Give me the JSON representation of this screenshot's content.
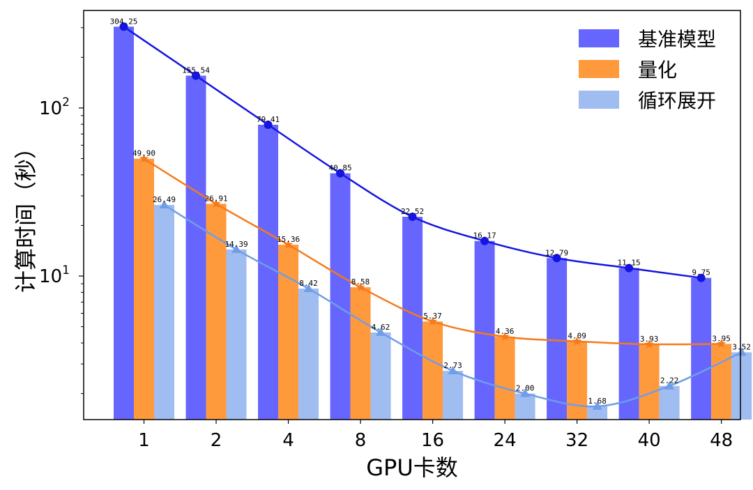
{
  "chart_data": {
    "type": "bar",
    "categories": [
      "1",
      "2",
      "4",
      "8",
      "16",
      "24",
      "32",
      "40",
      "48"
    ],
    "xlabel": "GPU卡数",
    "ylabel": "计算时间（秒）",
    "yscale": "log",
    "ylim": [
      1.4,
      380
    ],
    "y_ticks": [
      {
        "value": 10,
        "base": "10",
        "exp": "1"
      },
      {
        "value": 100,
        "base": "10",
        "exp": "2"
      }
    ],
    "legend_position": "top-right",
    "series": [
      {
        "name": "基准模型",
        "color": "#6666ff",
        "line_color": "#1515e0",
        "marker": "circle",
        "values": [
          304.25,
          155.54,
          79.41,
          40.85,
          22.52,
          16.17,
          12.79,
          11.15,
          9.75
        ],
        "labels": [
          "304.25",
          "155.54",
          "79.41",
          "40.85",
          "22.52",
          "16.17",
          "12.79",
          "11.15",
          "9.75"
        ]
      },
      {
        "name": "量化",
        "color": "#ff9a3c",
        "line_color": "#f57a1a",
        "marker": "star",
        "values": [
          49.9,
          26.91,
          15.36,
          8.58,
          5.37,
          4.36,
          4.09,
          3.93,
          3.95
        ],
        "labels": [
          "49.90",
          "26.91",
          "15.36",
          "8.58",
          "5.37",
          "4.36",
          "4.09",
          "3.93",
          "3.95"
        ]
      },
      {
        "name": "循环展开",
        "color": "#a0bdf2",
        "line_color": "#6f9de6",
        "marker": "triangle",
        "values": [
          26.49,
          14.39,
          8.42,
          4.62,
          2.73,
          2.0,
          1.68,
          2.22,
          3.52
        ],
        "labels": [
          "26.49",
          "14.39",
          "8.42",
          "4.62",
          "2.73",
          "2.00",
          "1.68",
          "2.22",
          "3.52"
        ]
      }
    ]
  }
}
